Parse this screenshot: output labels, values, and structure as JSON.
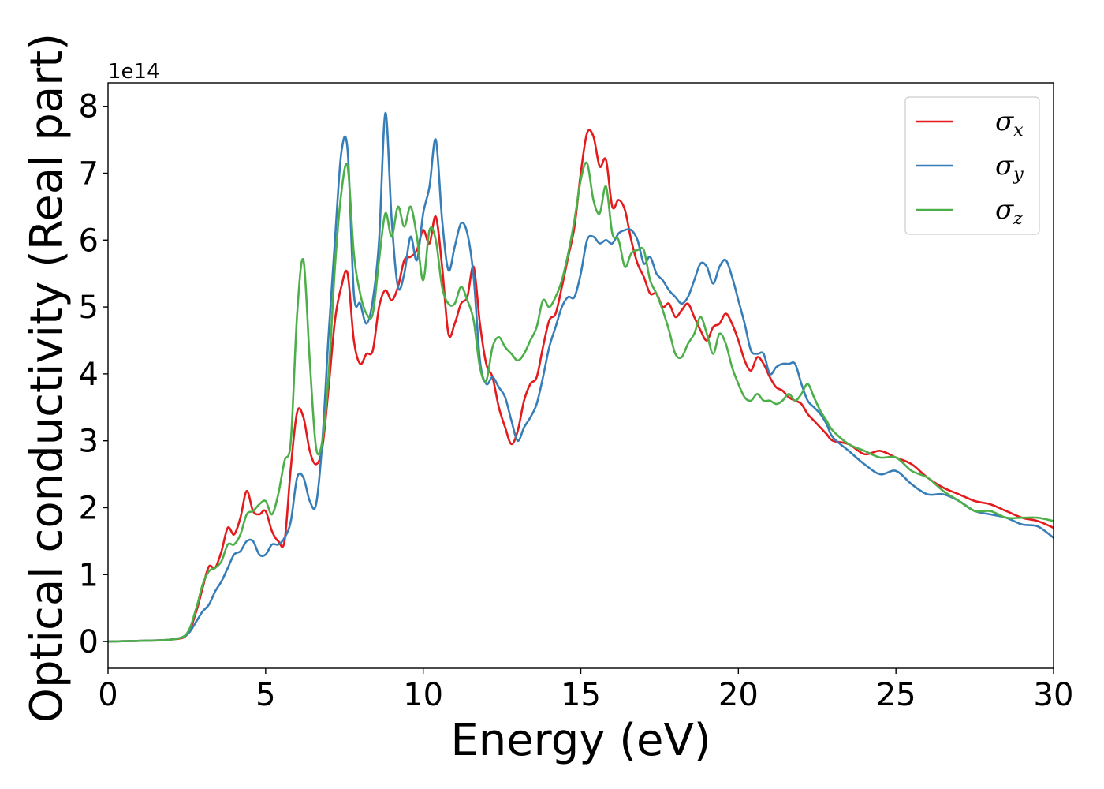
{
  "chart_data": {
    "type": "line",
    "xlabel": "Energy (eV)",
    "ylabel": "Optical conductivity (Real part)",
    "y_offset_text": "1e14",
    "xlim": [
      0,
      30
    ],
    "ylim": [
      -0.4,
      8.35
    ],
    "y_scale_factor": 100000000000000.0,
    "xticks": [
      0,
      5,
      10,
      15,
      20,
      25,
      30
    ],
    "yticks": [
      0,
      1,
      2,
      3,
      4,
      5,
      6,
      7,
      8
    ],
    "grid": false,
    "legend_position": "top-right",
    "series": [
      {
        "name": "σx",
        "symbol": "σ",
        "subscript": "x",
        "color": "#e41a1c",
        "x": [
          0,
          1,
          2,
          2.5,
          2.8,
          3.0,
          3.2,
          3.4,
          3.6,
          3.8,
          4.0,
          4.2,
          4.4,
          4.6,
          4.8,
          5.0,
          5.2,
          5.4,
          5.6,
          5.8,
          6.0,
          6.2,
          6.4,
          6.6,
          6.8,
          7.0,
          7.2,
          7.4,
          7.6,
          7.8,
          8.0,
          8.2,
          8.4,
          8.6,
          8.8,
          9.0,
          9.2,
          9.4,
          9.6,
          9.8,
          10.0,
          10.2,
          10.4,
          10.6,
          10.8,
          11.0,
          11.2,
          11.4,
          11.6,
          11.8,
          12.0,
          12.2,
          12.4,
          12.6,
          12.8,
          13.0,
          13.2,
          13.4,
          13.6,
          13.8,
          14.0,
          14.2,
          14.4,
          14.6,
          14.8,
          15.0,
          15.2,
          15.4,
          15.6,
          15.8,
          16.0,
          16.2,
          16.4,
          16.6,
          16.8,
          17.0,
          17.2,
          17.4,
          17.6,
          17.8,
          18.0,
          18.2,
          18.4,
          18.6,
          18.8,
          19.0,
          19.2,
          19.4,
          19.6,
          19.8,
          20.0,
          20.2,
          20.4,
          20.6,
          20.8,
          21.0,
          21.2,
          21.4,
          21.6,
          21.8,
          22.0,
          22.2,
          22.4,
          22.6,
          22.8,
          23.0,
          23.5,
          24.0,
          24.5,
          25.0,
          25.5,
          26.0,
          26.5,
          27.0,
          27.5,
          28.0,
          28.5,
          29.0,
          29.5,
          30.0
        ],
        "y": [
          0,
          0.01,
          0.03,
          0.1,
          0.45,
          0.8,
          1.12,
          1.1,
          1.35,
          1.7,
          1.6,
          1.85,
          2.25,
          1.95,
          1.9,
          1.95,
          1.65,
          1.5,
          1.5,
          2.6,
          3.43,
          3.35,
          2.85,
          2.65,
          2.9,
          3.8,
          4.8,
          5.3,
          5.5,
          4.5,
          4.15,
          4.3,
          4.35,
          5.0,
          5.25,
          5.1,
          5.3,
          5.7,
          5.75,
          5.85,
          6.15,
          5.95,
          6.35,
          5.6,
          4.6,
          4.75,
          5.05,
          5.15,
          5.6,
          4.75,
          4.15,
          3.95,
          3.5,
          3.2,
          2.95,
          3.15,
          3.6,
          3.85,
          3.95,
          4.4,
          4.8,
          4.9,
          5.3,
          5.75,
          6.2,
          7.0,
          7.6,
          7.55,
          7.1,
          7.2,
          6.5,
          6.6,
          6.45,
          6.0,
          5.65,
          5.45,
          5.2,
          5.2,
          5.0,
          5.05,
          4.85,
          4.95,
          5.05,
          4.85,
          4.65,
          4.5,
          4.7,
          4.75,
          4.9,
          4.75,
          4.5,
          4.2,
          4.05,
          4.25,
          4.15,
          3.95,
          3.8,
          3.75,
          3.65,
          3.6,
          3.55,
          3.4,
          3.3,
          3.2,
          3.1,
          3.0,
          2.95,
          2.8,
          2.85,
          2.75,
          2.65,
          2.45,
          2.3,
          2.2,
          2.1,
          2.05,
          1.95,
          1.85,
          1.8,
          1.7
        ]
      },
      {
        "name": "σy",
        "symbol": "σ",
        "subscript": "y",
        "color": "#377eb8",
        "x": [
          0,
          1,
          2,
          2.5,
          2.8,
          3.0,
          3.2,
          3.4,
          3.6,
          3.8,
          4.0,
          4.2,
          4.4,
          4.6,
          4.8,
          5.0,
          5.2,
          5.4,
          5.6,
          5.8,
          6.0,
          6.2,
          6.4,
          6.6,
          6.8,
          7.0,
          7.2,
          7.4,
          7.6,
          7.8,
          8.0,
          8.2,
          8.4,
          8.6,
          8.8,
          9.0,
          9.2,
          9.4,
          9.6,
          9.8,
          10.0,
          10.2,
          10.4,
          10.6,
          10.8,
          11.0,
          11.2,
          11.4,
          11.6,
          11.8,
          12.0,
          12.2,
          12.4,
          12.6,
          12.8,
          13.0,
          13.2,
          13.4,
          13.6,
          13.8,
          14.0,
          14.2,
          14.4,
          14.6,
          14.8,
          15.0,
          15.2,
          15.4,
          15.6,
          15.8,
          16.0,
          16.2,
          16.4,
          16.6,
          16.8,
          17.0,
          17.2,
          17.4,
          17.6,
          17.8,
          18.0,
          18.2,
          18.4,
          18.6,
          18.8,
          19.0,
          19.2,
          19.4,
          19.6,
          19.8,
          20.0,
          20.2,
          20.4,
          20.6,
          20.8,
          21.0,
          21.2,
          21.4,
          21.6,
          21.8,
          22.0,
          22.2,
          22.4,
          22.6,
          22.8,
          23.0,
          23.5,
          24.0,
          24.5,
          25.0,
          25.5,
          26.0,
          26.5,
          27.0,
          27.5,
          28.0,
          28.5,
          29.0,
          29.5,
          30.0
        ],
        "y": [
          0,
          0.01,
          0.03,
          0.1,
          0.3,
          0.45,
          0.55,
          0.75,
          0.9,
          1.1,
          1.3,
          1.35,
          1.5,
          1.5,
          1.3,
          1.3,
          1.45,
          1.45,
          1.55,
          1.8,
          2.45,
          2.45,
          2.1,
          2.05,
          3.0,
          4.6,
          6.0,
          7.3,
          7.35,
          5.2,
          5.05,
          4.75,
          5.1,
          6.0,
          7.9,
          6.3,
          5.3,
          5.5,
          6.05,
          5.7,
          6.4,
          6.8,
          7.5,
          6.3,
          5.55,
          5.9,
          6.25,
          6.1,
          5.45,
          4.2,
          3.85,
          3.95,
          3.8,
          3.65,
          3.3,
          3.0,
          3.2,
          3.35,
          3.55,
          3.95,
          4.4,
          4.7,
          5.0,
          5.15,
          5.15,
          5.5,
          6.0,
          6.05,
          5.95,
          6.0,
          5.95,
          6.1,
          6.15,
          6.15,
          6.0,
          5.65,
          5.75,
          5.5,
          5.4,
          5.25,
          5.15,
          5.05,
          5.15,
          5.4,
          5.65,
          5.6,
          5.35,
          5.6,
          5.7,
          5.45,
          5.1,
          4.75,
          4.35,
          4.3,
          4.3,
          4.0,
          4.1,
          4.15,
          4.15,
          4.15,
          3.85,
          3.6,
          3.5,
          3.4,
          3.25,
          3.05,
          2.85,
          2.65,
          2.5,
          2.55,
          2.35,
          2.2,
          2.2,
          2.1,
          1.95,
          1.9,
          1.85,
          1.75,
          1.72,
          1.55
        ]
      },
      {
        "name": "σz",
        "symbol": "σ",
        "subscript": "z",
        "color": "#4daf4a",
        "x": [
          0,
          1,
          2,
          2.5,
          2.8,
          3.0,
          3.2,
          3.4,
          3.6,
          3.8,
          4.0,
          4.2,
          4.4,
          4.6,
          4.8,
          5.0,
          5.2,
          5.4,
          5.6,
          5.8,
          6.0,
          6.2,
          6.4,
          6.6,
          6.8,
          7.0,
          7.2,
          7.4,
          7.6,
          7.8,
          8.0,
          8.2,
          8.4,
          8.6,
          8.8,
          9.0,
          9.2,
          9.4,
          9.6,
          9.8,
          10.0,
          10.2,
          10.4,
          10.6,
          10.8,
          11.0,
          11.2,
          11.4,
          11.6,
          11.8,
          12.0,
          12.2,
          12.4,
          12.6,
          12.8,
          13.0,
          13.2,
          13.4,
          13.6,
          13.8,
          14.0,
          14.2,
          14.4,
          14.6,
          14.8,
          15.0,
          15.2,
          15.4,
          15.6,
          15.8,
          16.0,
          16.2,
          16.4,
          16.6,
          16.8,
          17.0,
          17.2,
          17.4,
          17.6,
          17.8,
          18.0,
          18.2,
          18.4,
          18.6,
          18.8,
          19.0,
          19.2,
          19.4,
          19.6,
          19.8,
          20.0,
          20.2,
          20.4,
          20.6,
          20.8,
          21.0,
          21.2,
          21.4,
          21.6,
          21.8,
          22.0,
          22.2,
          22.4,
          22.6,
          22.8,
          23.0,
          23.5,
          24.0,
          24.5,
          25.0,
          25.5,
          26.0,
          26.5,
          27.0,
          27.5,
          28.0,
          28.5,
          29.0,
          29.5,
          30.0
        ],
        "y": [
          0,
          0.01,
          0.03,
          0.12,
          0.5,
          0.85,
          1.05,
          1.1,
          1.2,
          1.45,
          1.45,
          1.6,
          1.9,
          1.95,
          2.05,
          2.1,
          1.9,
          2.2,
          2.7,
          3.0,
          4.9,
          5.7,
          4.2,
          2.9,
          3.0,
          4.0,
          5.6,
          6.7,
          7.1,
          5.8,
          5.2,
          4.9,
          4.9,
          5.7,
          6.4,
          6.05,
          6.5,
          6.2,
          6.5,
          6.05,
          5.4,
          6.15,
          6.0,
          5.3,
          5.05,
          5.05,
          5.3,
          5.1,
          4.8,
          4.1,
          3.9,
          4.4,
          4.55,
          4.4,
          4.3,
          4.2,
          4.3,
          4.5,
          4.7,
          5.1,
          5.0,
          5.15,
          5.4,
          5.8,
          6.3,
          6.9,
          7.15,
          6.6,
          6.4,
          6.8,
          6.1,
          6.0,
          5.6,
          5.8,
          5.85,
          5.85,
          5.4,
          5.2,
          4.95,
          4.65,
          4.3,
          4.25,
          4.45,
          4.6,
          4.85,
          4.6,
          4.3,
          4.6,
          4.45,
          4.1,
          3.85,
          3.65,
          3.6,
          3.7,
          3.6,
          3.6,
          3.55,
          3.6,
          3.7,
          3.6,
          3.7,
          3.85,
          3.65,
          3.45,
          3.3,
          3.15,
          2.95,
          2.85,
          2.75,
          2.75,
          2.55,
          2.45,
          2.25,
          2.1,
          1.95,
          1.95,
          1.85,
          1.85,
          1.85,
          1.8
        ]
      }
    ]
  }
}
